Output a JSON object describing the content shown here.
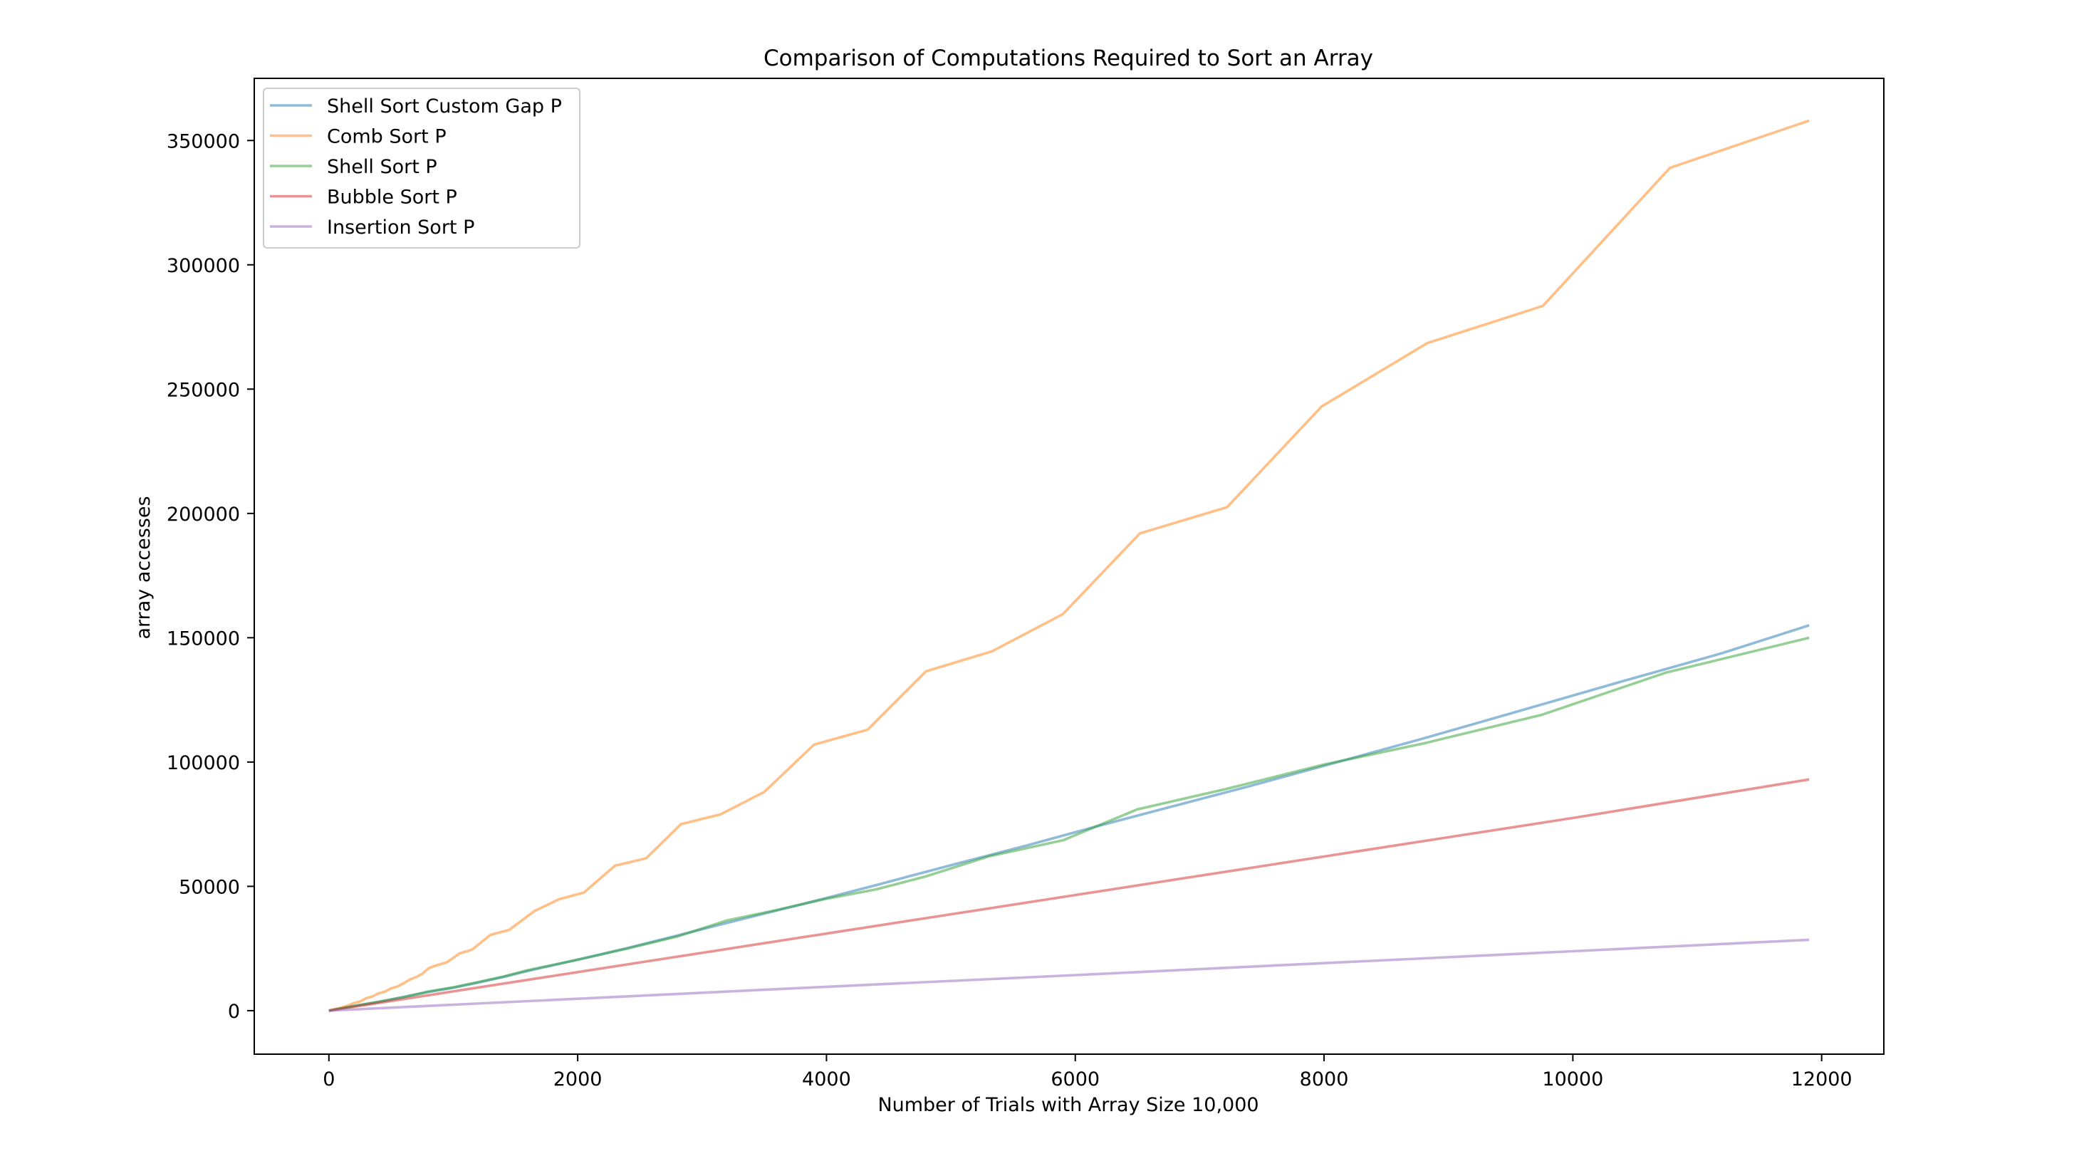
{
  "chart_data": {
    "type": "line",
    "title": "Comparison of Computations Required to Sort an Array",
    "xlabel": "Number of Trials with Array Size 10,000",
    "ylabel": "array accesses",
    "xlim": [
      -600,
      12500
    ],
    "ylim": [
      -17500,
      375000
    ],
    "xticks": [
      0,
      2000,
      4000,
      6000,
      8000,
      10000,
      12000
    ],
    "yticks": [
      0,
      50000,
      100000,
      150000,
      200000,
      250000,
      300000,
      350000
    ],
    "grid": false,
    "legend_position": "top-left",
    "series": [
      {
        "name": "Shell Sort Custom Gap P",
        "color": "#1f77b4",
        "x": [
          0,
          200,
          400,
          600,
          800,
          1000,
          1200,
          1400,
          1600,
          2000,
          2400,
          2800,
          3200,
          3600,
          4000,
          4400,
          5000,
          5600,
          6200,
          6800,
          7400,
          8000,
          8800,
          9600,
          10400,
          11200,
          11900
        ],
        "y": [
          0,
          1800,
          3500,
          5500,
          7500,
          9200,
          11300,
          13500,
          16000,
          20500,
          25200,
          30200,
          35300,
          40300,
          45300,
          50500,
          58500,
          66300,
          74500,
          82400,
          90300,
          98500,
          109500,
          121000,
          132500,
          143800,
          155000
        ]
      },
      {
        "name": "Comb Sort P",
        "color": "#ff7f0e",
        "x": [
          0,
          100,
          150,
          200,
          250,
          300,
          350,
          400,
          450,
          500,
          550,
          600,
          650,
          700,
          750,
          800,
          850,
          950,
          1050,
          1150,
          1300,
          1450,
          1650,
          1850,
          2050,
          2300,
          2550,
          2830,
          3150,
          3500,
          3900,
          4330,
          4800,
          5330,
          5900,
          6520,
          7220,
          7980,
          8830,
          9760,
          10780,
          11900
        ],
        "y": [
          0,
          1200,
          2000,
          3000,
          3700,
          5000,
          5700,
          7000,
          7600,
          9000,
          9700,
          11000,
          12500,
          13500,
          14800,
          17000,
          18000,
          19500,
          23000,
          24500,
          30500,
          32500,
          40000,
          44800,
          47500,
          58300,
          61300,
          75000,
          79000,
          88000,
          107000,
          113000,
          136500,
          144500,
          159500,
          192000,
          202500,
          243000,
          268500,
          283500,
          339000,
          358000
        ]
      },
      {
        "name": "Shell Sort P",
        "color": "#2ca02c",
        "x": [
          0,
          200,
          400,
          600,
          800,
          1000,
          1200,
          1400,
          1600,
          2000,
          2400,
          2800,
          3200,
          3600,
          4000,
          4400,
          4800,
          5300,
          5900,
          6500,
          7200,
          8000,
          8800,
          9750,
          10750,
          11900
        ],
        "y": [
          0,
          1900,
          3600,
          5400,
          7700,
          9400,
          11500,
          13700,
          16300,
          20500,
          25000,
          29800,
          36300,
          40500,
          45000,
          48800,
          54000,
          62000,
          68500,
          81000,
          89000,
          99000,
          107500,
          119000,
          136000,
          150000
        ]
      },
      {
        "name": "Bubble Sort P",
        "color": "#d62728",
        "x": [
          0,
          2000,
          4000,
          6000,
          8000,
          10000,
          11900
        ],
        "y": [
          0,
          15500,
          31000,
          46500,
          62000,
          77500,
          93000
        ]
      },
      {
        "name": "Insertion Sort P",
        "color": "#9467bd",
        "x": [
          0,
          2000,
          4000,
          6000,
          8000,
          10000,
          11900
        ],
        "y": [
          0,
          4800,
          9600,
          14300,
          19100,
          23900,
          28500
        ]
      }
    ]
  }
}
